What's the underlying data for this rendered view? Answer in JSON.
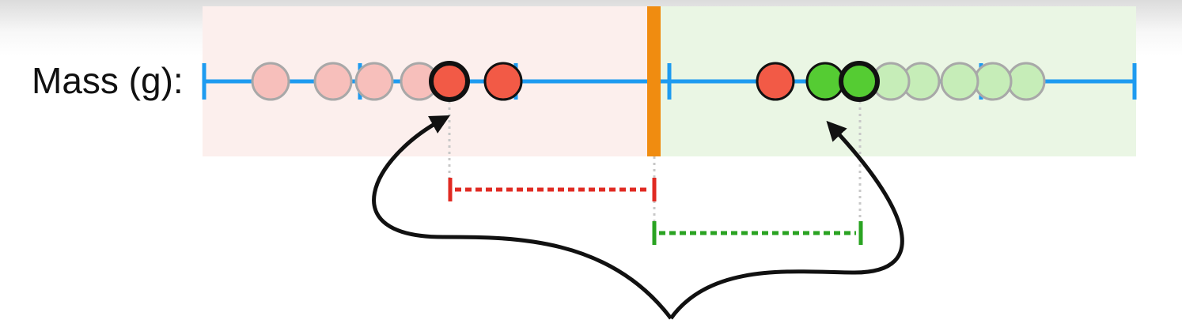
{
  "axis_label": "Mass (g):",
  "colors": {
    "axis_line": "#1e9bf0",
    "threshold_bar": "#f08c10",
    "left_region_bg": "#fcefed",
    "right_region_bg": "#eaf6e4",
    "red_point": "#f25a46",
    "red_point_faded": "#f7bfbb",
    "green_point": "#55cc33",
    "green_point_faded": "#c6edb8",
    "red_gap": "#e02a22",
    "green_gap": "#2aa322",
    "connector_guide": "#c8c8c8",
    "arrow": "#111111"
  }
}
